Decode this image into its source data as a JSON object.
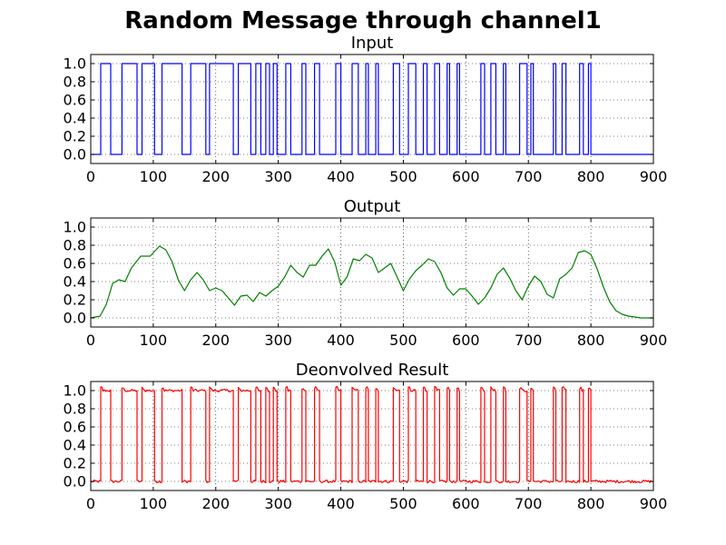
{
  "figure": {
    "suptitle": "Random Message through channel1"
  },
  "chart_data": [
    {
      "type": "line",
      "title": "Input",
      "xlabel": "",
      "ylabel": "",
      "xlim": [
        0,
        900
      ],
      "ylim": [
        -0.1,
        1.1
      ],
      "xticks": [
        "0",
        "100",
        "200",
        "300",
        "400",
        "500",
        "600",
        "700",
        "800",
        "900"
      ],
      "yticks": [
        "0.0",
        "0.2",
        "0.4",
        "0.6",
        "0.8",
        "1.0"
      ],
      "grid": true,
      "color": "#0000ff",
      "step": true,
      "series": [
        {
          "x": [
            0,
            16,
            32,
            50,
            74,
            82,
            102,
            106,
            114,
            146,
            160,
            184,
            190,
            228,
            236,
            256,
            264,
            272,
            280,
            286,
            292,
            298,
            312,
            320,
            338,
            344,
            358,
            366,
            392,
            400,
            418,
            428,
            440,
            444,
            456,
            460,
            484,
            494,
            508,
            520,
            532,
            538,
            550,
            558,
            570,
            574,
            586,
            590,
            624,
            630,
            640,
            648,
            660,
            664,
            686,
            698,
            704,
            708,
            740,
            744,
            754,
            760,
            782,
            788,
            796,
            800,
            900
          ],
          "y": [
            0,
            1,
            0,
            1,
            0,
            1,
            0,
            0,
            1,
            0,
            1,
            0,
            1,
            0,
            1,
            0,
            1,
            0,
            1,
            0,
            1,
            0,
            1,
            0,
            1,
            0,
            1,
            0,
            1,
            0,
            1,
            0,
            1,
            0,
            1,
            0,
            1,
            0,
            1,
            0,
            1,
            0,
            1,
            0,
            1,
            0,
            1,
            0,
            1,
            0,
            1,
            0,
            1,
            0,
            1,
            0,
            1,
            0,
            1,
            0,
            1,
            0,
            1,
            0,
            1,
            0,
            0
          ]
        }
      ]
    },
    {
      "type": "line",
      "title": "Output",
      "xlabel": "",
      "ylabel": "",
      "xlim": [
        0,
        900
      ],
      "ylim": [
        -0.1,
        1.1
      ],
      "xticks": [
        "0",
        "100",
        "200",
        "300",
        "400",
        "500",
        "600",
        "700",
        "800",
        "900"
      ],
      "yticks": [
        "0.0",
        "0.2",
        "0.4",
        "0.6",
        "0.8",
        "1.0"
      ],
      "grid": true,
      "color": "#008000",
      "step": false,
      "series": [
        {
          "x": [
            0,
            15,
            25,
            35,
            45,
            55,
            65,
            80,
            95,
            110,
            120,
            130,
            140,
            150,
            160,
            170,
            180,
            190,
            200,
            210,
            220,
            230,
            240,
            250,
            260,
            270,
            280,
            290,
            300,
            310,
            320,
            330,
            340,
            350,
            360,
            370,
            380,
            390,
            400,
            410,
            420,
            430,
            440,
            450,
            460,
            470,
            480,
            490,
            500,
            510,
            520,
            530,
            540,
            550,
            560,
            570,
            580,
            590,
            600,
            610,
            620,
            630,
            640,
            650,
            660,
            670,
            680,
            690,
            700,
            710,
            720,
            730,
            740,
            750,
            760,
            770,
            780,
            790,
            800,
            810,
            820,
            830,
            840,
            850,
            860,
            870,
            880,
            890,
            900
          ],
          "y": [
            0.0,
            0.02,
            0.15,
            0.38,
            0.42,
            0.4,
            0.55,
            0.68,
            0.68,
            0.79,
            0.75,
            0.62,
            0.42,
            0.3,
            0.42,
            0.5,
            0.42,
            0.3,
            0.33,
            0.3,
            0.22,
            0.14,
            0.24,
            0.25,
            0.18,
            0.28,
            0.24,
            0.3,
            0.35,
            0.45,
            0.58,
            0.5,
            0.45,
            0.58,
            0.58,
            0.68,
            0.76,
            0.62,
            0.36,
            0.45,
            0.65,
            0.63,
            0.7,
            0.66,
            0.5,
            0.55,
            0.6,
            0.45,
            0.3,
            0.43,
            0.52,
            0.58,
            0.65,
            0.62,
            0.5,
            0.33,
            0.25,
            0.32,
            0.32,
            0.24,
            0.15,
            0.22,
            0.33,
            0.48,
            0.55,
            0.44,
            0.3,
            0.2,
            0.35,
            0.46,
            0.4,
            0.26,
            0.22,
            0.43,
            0.48,
            0.55,
            0.72,
            0.74,
            0.7,
            0.54,
            0.34,
            0.18,
            0.08,
            0.04,
            0.02,
            0.01,
            0.0,
            0.0,
            0.0
          ]
        }
      ]
    },
    {
      "type": "line",
      "title": "Deonvolved Result",
      "xlabel": "",
      "ylabel": "",
      "xlim": [
        0,
        900
      ],
      "ylim": [
        -0.1,
        1.1
      ],
      "xticks": [
        "0",
        "100",
        "200",
        "300",
        "400",
        "500",
        "600",
        "700",
        "800",
        "900"
      ],
      "yticks": [
        "0.0",
        "0.2",
        "0.4",
        "0.6",
        "0.8",
        "1.0"
      ],
      "grid": true,
      "color": "#ff0000",
      "step": true,
      "series": [
        {
          "x": [
            0,
            16,
            32,
            50,
            74,
            82,
            102,
            106,
            114,
            146,
            160,
            184,
            190,
            228,
            236,
            256,
            264,
            272,
            280,
            286,
            292,
            298,
            312,
            320,
            338,
            344,
            358,
            366,
            392,
            400,
            418,
            428,
            440,
            444,
            456,
            460,
            484,
            494,
            508,
            520,
            532,
            538,
            550,
            558,
            570,
            574,
            586,
            590,
            624,
            630,
            640,
            648,
            660,
            664,
            686,
            698,
            704,
            708,
            740,
            744,
            754,
            760,
            782,
            788,
            796,
            800,
            900
          ],
          "y": [
            0,
            1,
            0,
            1,
            0,
            1,
            0,
            0,
            1,
            0,
            1,
            0,
            1,
            0,
            1,
            0,
            1,
            0,
            1,
            0,
            1,
            0,
            1,
            0,
            1,
            0,
            1,
            0,
            1,
            0,
            1,
            0,
            1,
            0,
            1,
            0,
            1,
            0,
            1,
            0,
            1,
            0,
            1,
            0,
            1,
            0,
            1,
            0,
            1,
            0,
            1,
            0,
            1,
            0,
            1,
            0,
            1,
            0,
            1,
            0,
            1,
            0,
            1,
            0,
            1,
            0,
            0
          ]
        }
      ]
    }
  ]
}
